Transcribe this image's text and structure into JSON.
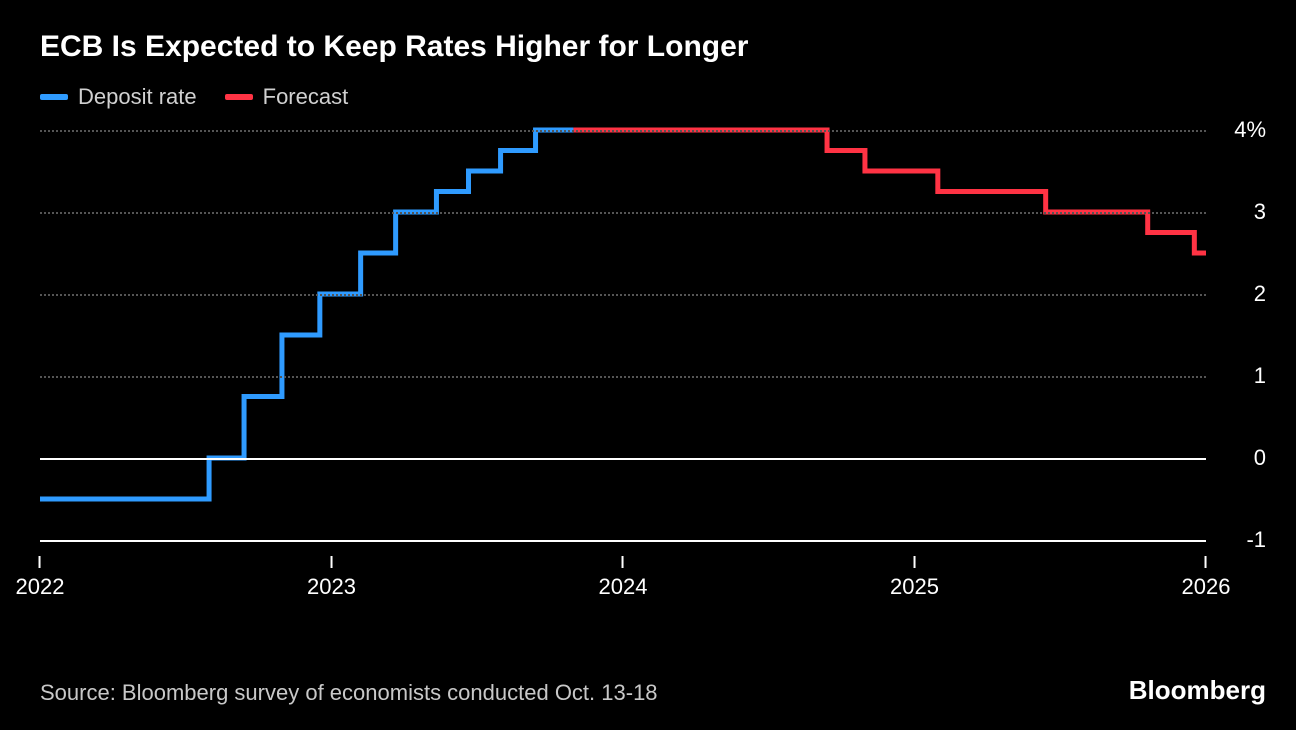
{
  "title": "ECB Is Expected to Keep Rates Higher for Longer",
  "source": "Source: Bloomberg survey of economists conducted Oct. 13-18",
  "brand": "Bloomberg",
  "colors": {
    "background": "#000000",
    "text": "#ffffff",
    "muted_text": "#c8c8c8",
    "grid": "#555555",
    "deposit": "#2f9bff",
    "forecast": "#ff3344"
  },
  "legend": [
    {
      "label": "Deposit rate",
      "color": "#2f9bff"
    },
    {
      "label": "Forecast",
      "color": "#ff3344"
    }
  ],
  "chart": {
    "type": "step-line",
    "x_domain": [
      2022.0,
      2026.0
    ],
    "y_domain": [
      -1.0,
      4.0
    ],
    "y_ticks": [
      {
        "value": 4,
        "label": "4%"
      },
      {
        "value": 3,
        "label": "3"
      },
      {
        "value": 2,
        "label": "2"
      },
      {
        "value": 1,
        "label": "1"
      },
      {
        "value": 0,
        "label": "0"
      },
      {
        "value": -1,
        "label": "-1"
      }
    ],
    "x_ticks": [
      {
        "value": 2022,
        "label": "2022"
      },
      {
        "value": 2023,
        "label": "2023"
      },
      {
        "value": 2024,
        "label": "2024"
      },
      {
        "value": 2025,
        "label": "2025"
      },
      {
        "value": 2026,
        "label": "2026"
      }
    ],
    "line_width": 5,
    "series": [
      {
        "name": "deposit",
        "color": "#2f9bff",
        "points": [
          {
            "x": 2022.0,
            "y": -0.5
          },
          {
            "x": 2022.58,
            "y": -0.5
          },
          {
            "x": 2022.58,
            "y": 0.0
          },
          {
            "x": 2022.7,
            "y": 0.0
          },
          {
            "x": 2022.7,
            "y": 0.75
          },
          {
            "x": 2022.83,
            "y": 0.75
          },
          {
            "x": 2022.83,
            "y": 1.5
          },
          {
            "x": 2022.96,
            "y": 1.5
          },
          {
            "x": 2022.96,
            "y": 2.0
          },
          {
            "x": 2023.1,
            "y": 2.0
          },
          {
            "x": 2023.1,
            "y": 2.5
          },
          {
            "x": 2023.22,
            "y": 2.5
          },
          {
            "x": 2023.22,
            "y": 3.0
          },
          {
            "x": 2023.36,
            "y": 3.0
          },
          {
            "x": 2023.36,
            "y": 3.25
          },
          {
            "x": 2023.47,
            "y": 3.25
          },
          {
            "x": 2023.47,
            "y": 3.5
          },
          {
            "x": 2023.58,
            "y": 3.5
          },
          {
            "x": 2023.58,
            "y": 3.75
          },
          {
            "x": 2023.7,
            "y": 3.75
          },
          {
            "x": 2023.7,
            "y": 4.0
          },
          {
            "x": 2023.83,
            "y": 4.0
          }
        ]
      },
      {
        "name": "forecast",
        "color": "#ff3344",
        "points": [
          {
            "x": 2023.83,
            "y": 4.0
          },
          {
            "x": 2024.7,
            "y": 4.0
          },
          {
            "x": 2024.7,
            "y": 3.75
          },
          {
            "x": 2024.83,
            "y": 3.75
          },
          {
            "x": 2024.83,
            "y": 3.5
          },
          {
            "x": 2025.08,
            "y": 3.5
          },
          {
            "x": 2025.08,
            "y": 3.25
          },
          {
            "x": 2025.45,
            "y": 3.25
          },
          {
            "x": 2025.45,
            "y": 3.0
          },
          {
            "x": 2025.8,
            "y": 3.0
          },
          {
            "x": 2025.8,
            "y": 2.75
          },
          {
            "x": 2025.96,
            "y": 2.75
          },
          {
            "x": 2025.96,
            "y": 2.5
          },
          {
            "x": 2026.0,
            "y": 2.5
          }
        ]
      }
    ]
  }
}
